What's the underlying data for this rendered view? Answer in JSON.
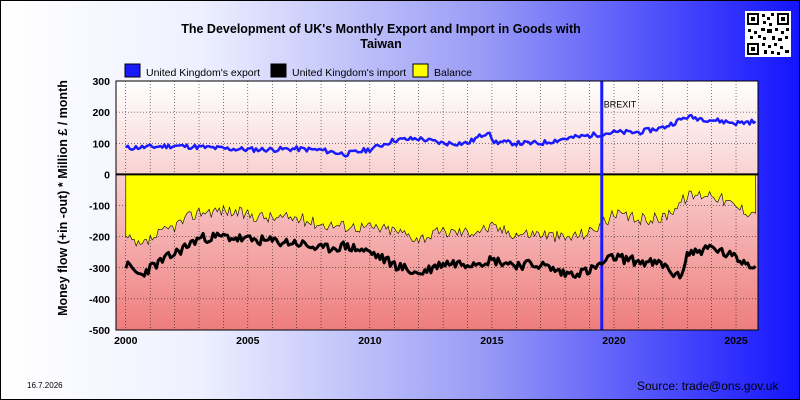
{
  "header": {
    "title_line1": "The Development of UK's Monthly Export and Import in Goods with",
    "title_line2": "Taiwan"
  },
  "footer": {
    "date": "16.7.2026",
    "source": "Source: trade@ons.gov.uk"
  },
  "chart_data": {
    "type": "line",
    "title": "The Development of UK's Monthly Export and Import in Goods with Taiwan",
    "ylabel": "Money flow (+in -out) * Million £ / month",
    "xlabel": "",
    "x_range": [
      1999.6,
      2025.9
    ],
    "ylim": [
      -500,
      300
    ],
    "y_ticks": [
      300,
      200,
      100,
      0,
      -100,
      -200,
      -300,
      -400,
      -500
    ],
    "x_ticks": [
      2000,
      2005,
      2010,
      2015,
      2020,
      2025
    ],
    "grid": true,
    "legend_position": "top",
    "colors": {
      "export": "#1a1aff",
      "import": "#000000",
      "balance": "#ffff00"
    },
    "annotation": {
      "label": "BREXIT",
      "x": 2019.5
    },
    "series": [
      {
        "name": "United Kingdom's export",
        "points": [
          [
            2000,
            85
          ],
          [
            2001,
            88
          ],
          [
            2002,
            92
          ],
          [
            2003,
            88
          ],
          [
            2004,
            83
          ],
          [
            2005,
            80
          ],
          [
            2006,
            80
          ],
          [
            2007,
            82
          ],
          [
            2008,
            78
          ],
          [
            2009,
            65
          ],
          [
            2010,
            80
          ],
          [
            2011,
            110
          ],
          [
            2012,
            115
          ],
          [
            2013,
            100
          ],
          [
            2014,
            100
          ],
          [
            2014.9,
            140
          ],
          [
            2015,
            105
          ],
          [
            2016,
            100
          ],
          [
            2017,
            100
          ],
          [
            2018,
            115
          ],
          [
            2019,
            125
          ],
          [
            2020,
            135
          ],
          [
            2021,
            135
          ],
          [
            2022,
            150
          ],
          [
            2023,
            185
          ],
          [
            2024,
            175
          ],
          [
            2025,
            165
          ],
          [
            2025.8,
            170
          ]
        ]
      },
      {
        "name": "United Kingdom's import",
        "points": [
          [
            2000,
            -290
          ],
          [
            2000.6,
            -325
          ],
          [
            2001,
            -300
          ],
          [
            2002,
            -255
          ],
          [
            2003,
            -205
          ],
          [
            2004,
            -200
          ],
          [
            2005,
            -210
          ],
          [
            2006,
            -215
          ],
          [
            2007,
            -220
          ],
          [
            2008,
            -240
          ],
          [
            2009,
            -230
          ],
          [
            2010,
            -250
          ],
          [
            2011,
            -290
          ],
          [
            2012,
            -320
          ],
          [
            2013,
            -285
          ],
          [
            2014,
            -285
          ],
          [
            2015,
            -275
          ],
          [
            2016,
            -290
          ],
          [
            2017,
            -290
          ],
          [
            2018,
            -320
          ],
          [
            2019,
            -310
          ],
          [
            2020,
            -265
          ],
          [
            2021,
            -280
          ],
          [
            2022,
            -290
          ],
          [
            2022.7,
            -335
          ],
          [
            2023,
            -255
          ],
          [
            2024,
            -235
          ],
          [
            2025,
            -270
          ],
          [
            2025.8,
            -295
          ]
        ]
      },
      {
        "name": "Balance",
        "points": [
          [
            2000,
            -205
          ],
          [
            2000.6,
            -235
          ],
          [
            2001,
            -210
          ],
          [
            2002,
            -165
          ],
          [
            2003,
            -120
          ],
          [
            2004,
            -115
          ],
          [
            2005,
            -130
          ],
          [
            2006,
            -140
          ],
          [
            2007,
            -140
          ],
          [
            2008,
            -160
          ],
          [
            2009,
            -165
          ],
          [
            2010,
            -170
          ],
          [
            2011,
            -180
          ],
          [
            2012,
            -205
          ],
          [
            2013,
            -185
          ],
          [
            2014,
            -185
          ],
          [
            2015,
            -170
          ],
          [
            2016,
            -190
          ],
          [
            2017,
            -190
          ],
          [
            2018,
            -205
          ],
          [
            2019,
            -185
          ],
          [
            2020,
            -130
          ],
          [
            2021,
            -145
          ],
          [
            2022,
            -140
          ],
          [
            2023,
            -70
          ],
          [
            2024,
            -60
          ],
          [
            2025,
            -105
          ],
          [
            2025.8,
            -125
          ]
        ]
      }
    ]
  }
}
